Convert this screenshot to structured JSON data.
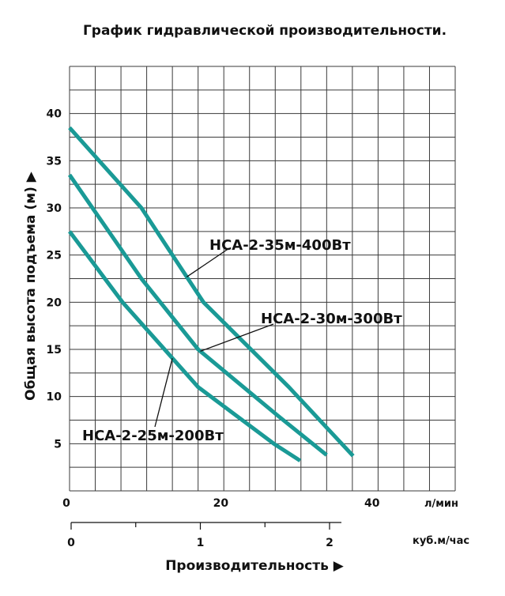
{
  "chart_data": {
    "type": "line",
    "title": "График гидравлической производительности.",
    "ylabel": "Общая высота подъема  (м)  ▶",
    "xlabel": "Производительность  ▶",
    "x_unit_primary": "л/мин",
    "x_unit_secondary": "куб.м/час",
    "x_ticks_primary": [
      0,
      20,
      40
    ],
    "x_ticks_secondary": [
      0,
      1,
      2
    ],
    "y_ticks": [
      5,
      10,
      15,
      20,
      25,
      30,
      35,
      40
    ],
    "xlim": [
      0,
      51
    ],
    "ylim": [
      0,
      45
    ],
    "grid": true,
    "series": [
      {
        "name": "НСА-2-35м-400Вт",
        "color": "#1a9a96",
        "x": [
          0,
          9.5,
          17.7,
          29.0,
          37.5
        ],
        "y": [
          38.5,
          30.0,
          20.0,
          11.0,
          3.7
        ]
      },
      {
        "name": "НСА-2-30м-300Вт",
        "color": "#1a9a96",
        "x": [
          0,
          9.5,
          17.0,
          27.5,
          34.0
        ],
        "y": [
          33.5,
          22.5,
          15.0,
          8.0,
          3.8
        ]
      },
      {
        "name": "НСА-2-25м-200Вт",
        "color": "#1a9a96",
        "x": [
          0,
          7.0,
          17.0,
          27.0,
          30.5
        ],
        "y": [
          27.5,
          20.0,
          11.0,
          5.0,
          3.2
        ]
      }
    ],
    "annotations": [
      {
        "text": "НСА-2-35м-400Вт",
        "series": 0,
        "at_x": 15.5
      },
      {
        "text": "НСА-2-30м-300Вт",
        "series": 1,
        "at_x": 17.3
      },
      {
        "text": "НСА-2-25м-200Вт",
        "series": 2,
        "at_x": 13.6
      }
    ]
  }
}
